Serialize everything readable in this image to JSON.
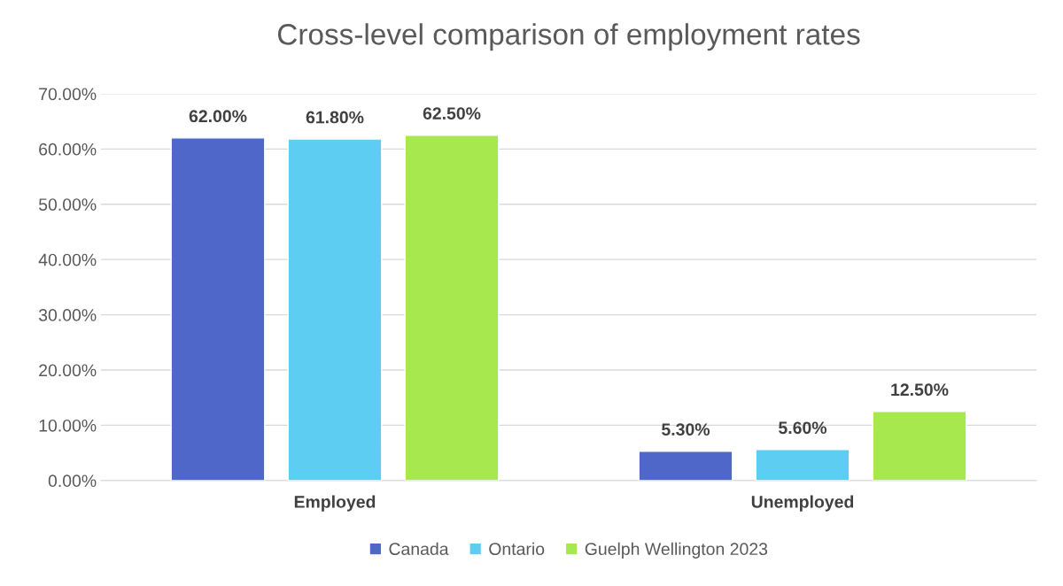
{
  "chart_data": {
    "type": "bar",
    "title": "Cross-level comparison of employment rates",
    "categories": [
      "Employed",
      "Unemployed"
    ],
    "series": [
      {
        "name": "Canada",
        "color": "#4f67c9",
        "values": [
          62.0,
          5.3
        ],
        "value_labels": [
          "62.00%",
          "5.30%"
        ]
      },
      {
        "name": "Ontario",
        "color": "#5ecdf2",
        "values": [
          61.8,
          5.6
        ],
        "value_labels": [
          "61.80%",
          "5.60%"
        ]
      },
      {
        "name": "Guelph Wellington 2023",
        "color": "#a8e84f",
        "values": [
          62.5,
          12.5
        ],
        "value_labels": [
          "62.50%",
          "12.50%"
        ]
      }
    ],
    "ylim": [
      0,
      70
    ],
    "yticks": [
      {
        "value": 0,
        "label": "0.00%"
      },
      {
        "value": 10,
        "label": "10.00%"
      },
      {
        "value": 20,
        "label": "20.00%"
      },
      {
        "value": 30,
        "label": "30.00%"
      },
      {
        "value": 40,
        "label": "40.00%"
      },
      {
        "value": 50,
        "label": "50.00%"
      },
      {
        "value": 60,
        "label": "60.00%"
      },
      {
        "value": 70,
        "label": "70.00%"
      }
    ],
    "grid": "y",
    "legend": "bottom"
  }
}
